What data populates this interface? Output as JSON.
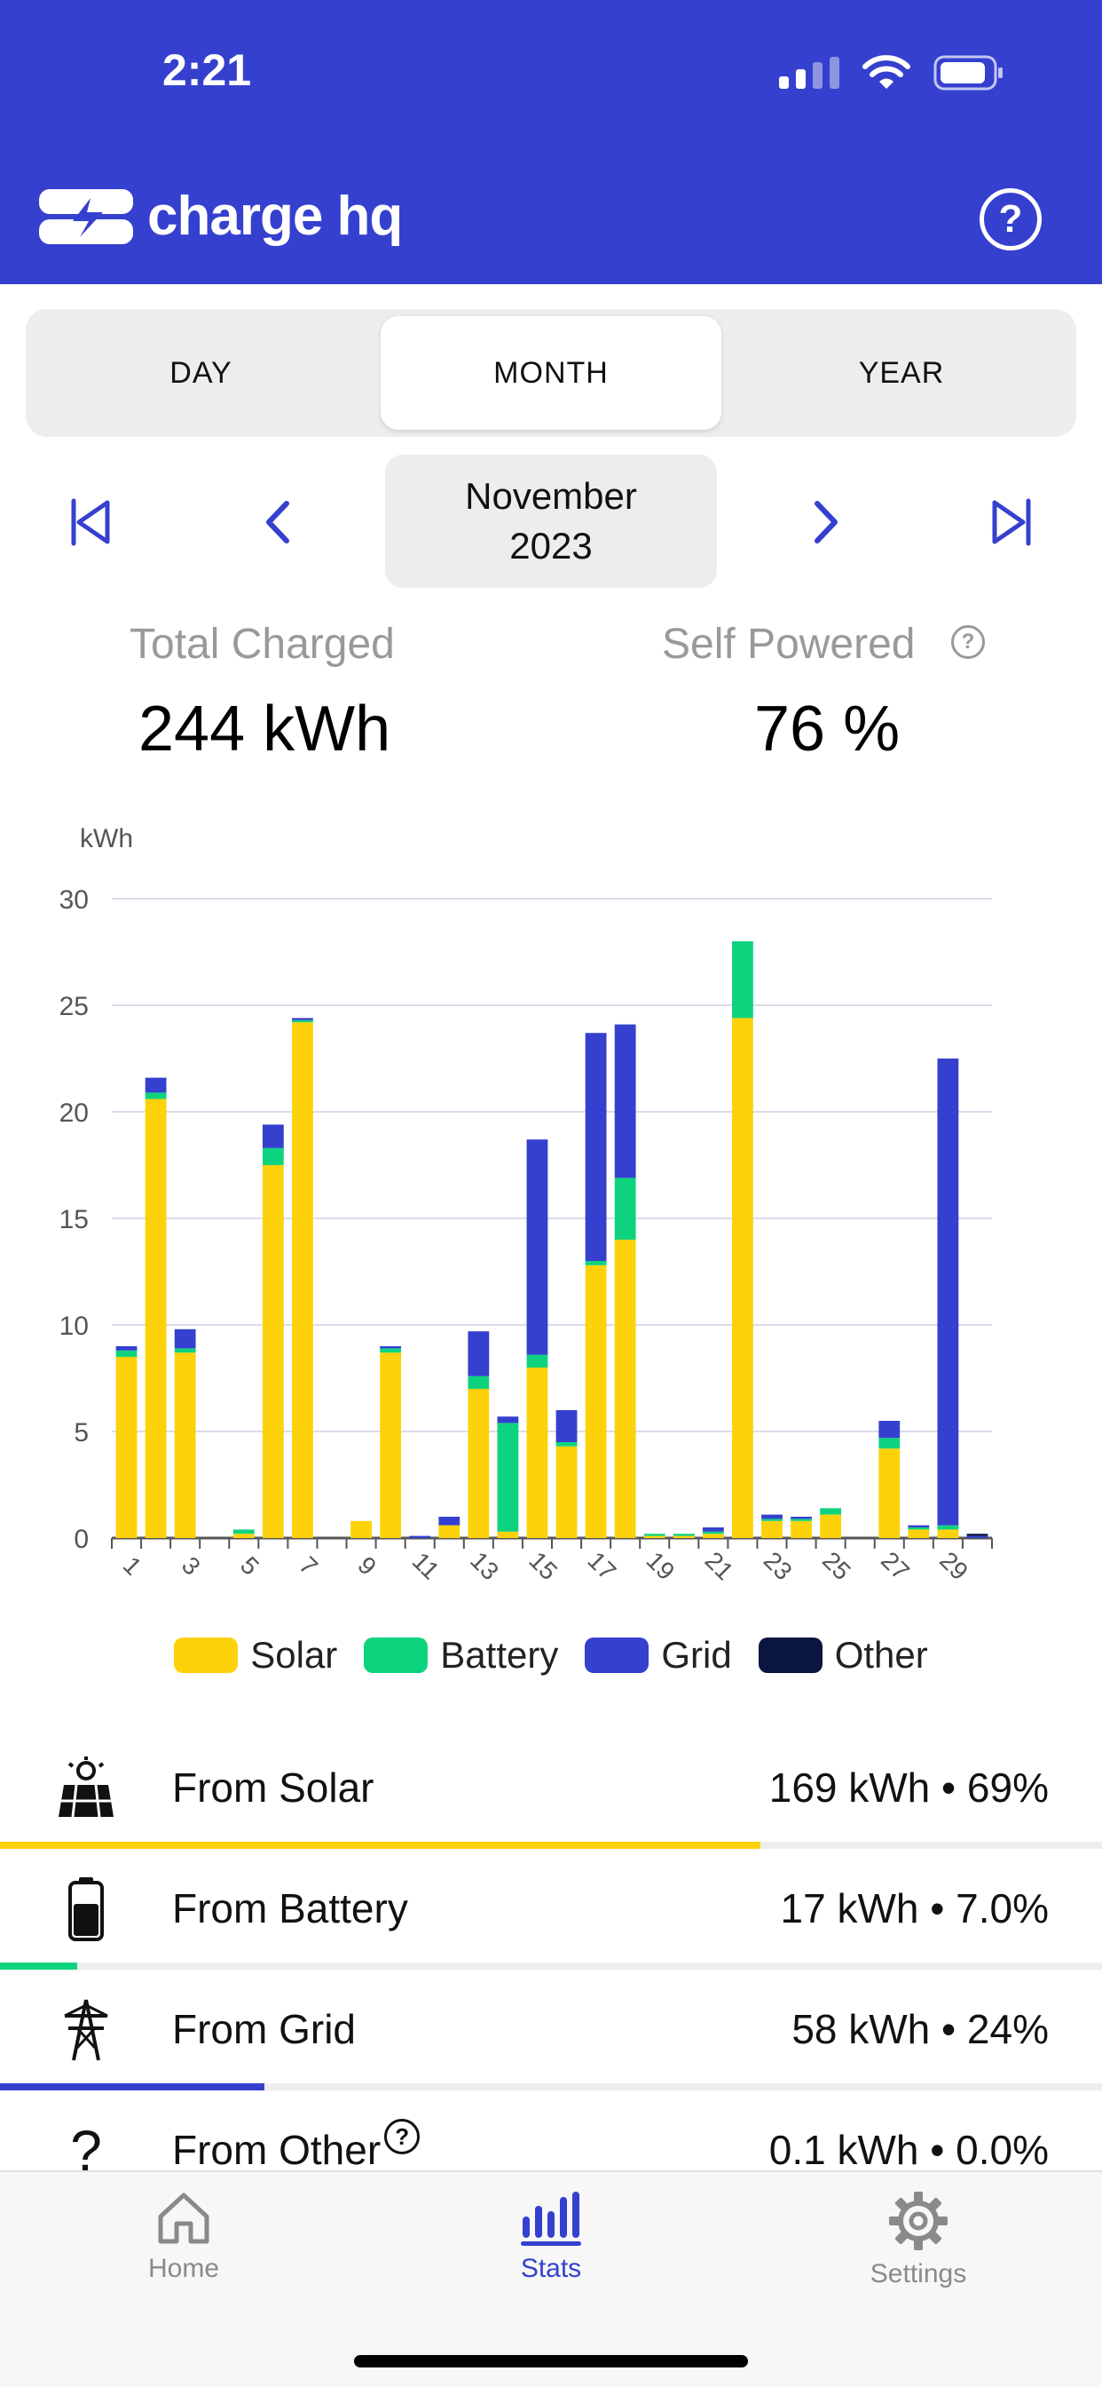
{
  "status_bar": {
    "time": "2:21"
  },
  "header": {
    "brand": "charge hq",
    "help_icon": "help-circle-icon"
  },
  "period_tabs": {
    "day": "DAY",
    "month": "MONTH",
    "year": "YEAR",
    "selected": "MONTH"
  },
  "period": {
    "month": "November",
    "year": "2023"
  },
  "summary": {
    "total_label": "Total Charged",
    "total_value": "244 kWh",
    "self_label": "Self Powered",
    "self_value": "76 %"
  },
  "colors": {
    "solar": "#FDD20A",
    "battery": "#0ED37E",
    "grid": "#3540CF",
    "other": "#0A1640",
    "brand": "#3540CF"
  },
  "chart_data": {
    "type": "bar",
    "stacked": true,
    "ylabel": "kWh",
    "ylim": [
      0,
      30
    ],
    "yticks": [
      0,
      5,
      10,
      15,
      20,
      25,
      30
    ],
    "categories": [
      "1",
      "2",
      "3",
      "4",
      "5",
      "6",
      "7",
      "8",
      "9",
      "10",
      "11",
      "12",
      "13",
      "14",
      "15",
      "16",
      "17",
      "18",
      "19",
      "20",
      "21",
      "22",
      "23",
      "24",
      "25",
      "26",
      "27",
      "28",
      "29",
      "30"
    ],
    "xtick_labels": [
      "1",
      "3",
      "5",
      "7",
      "9",
      "11",
      "13",
      "15",
      "17",
      "19",
      "21",
      "23",
      "25",
      "27",
      "29"
    ],
    "series": [
      {
        "name": "Solar",
        "values": [
          8.5,
          20.6,
          8.7,
          0,
          0.2,
          17.5,
          24.2,
          0,
          0.8,
          8.7,
          0,
          0.6,
          7.0,
          0.3,
          8.0,
          4.3,
          12.8,
          14.0,
          0.1,
          0.1,
          0.2,
          24.4,
          0.8,
          0.8,
          1.1,
          0,
          4.2,
          0.4,
          0.4,
          0
        ]
      },
      {
        "name": "Battery",
        "values": [
          0.3,
          0.3,
          0.2,
          0,
          0.2,
          0.8,
          0.1,
          0,
          0,
          0.2,
          0,
          0,
          0.6,
          5.1,
          0.6,
          0.2,
          0.2,
          2.9,
          0.1,
          0.1,
          0.1,
          3.6,
          0.1,
          0.1,
          0.3,
          0,
          0.5,
          0.1,
          0.2,
          0
        ]
      },
      {
        "name": "Grid",
        "values": [
          0.2,
          0.7,
          0.9,
          0,
          0,
          1.1,
          0.1,
          0,
          0,
          0.1,
          0.1,
          0.4,
          2.1,
          0.3,
          10.1,
          1.5,
          10.7,
          7.2,
          0,
          0,
          0.2,
          0,
          0.2,
          0.1,
          0,
          0,
          0.8,
          0.1,
          21.9,
          0.1
        ]
      },
      {
        "name": "Other",
        "values": [
          0,
          0,
          0,
          0,
          0,
          0,
          0,
          0,
          0,
          0,
          0,
          0,
          0,
          0,
          0,
          0,
          0,
          0,
          0,
          0,
          0,
          0,
          0,
          0,
          0,
          0,
          0,
          0,
          0,
          0.1
        ]
      }
    ],
    "legend_position": "bottom",
    "grid": true
  },
  "legend": {
    "solar": "Solar",
    "battery": "Battery",
    "grid": "Grid",
    "other": "Other"
  },
  "breakdown": [
    {
      "label": "From Solar",
      "value": "169 kWh • 69%",
      "icon": "solar-panel-icon",
      "share": 0.69
    },
    {
      "label": "From Battery",
      "value": "17 kWh • 7.0%",
      "icon": "battery-icon",
      "share": 0.07
    },
    {
      "label": "From Grid",
      "value": "58 kWh • 24%",
      "icon": "power-tower-icon",
      "share": 0.24
    },
    {
      "label": "From Other",
      "value": "0.1 kWh • 0.0%",
      "icon": "question-mark-icon",
      "share": 0.0
    }
  ],
  "tabbar": {
    "home": "Home",
    "stats": "Stats",
    "settings": "Settings",
    "selected": "Stats"
  }
}
